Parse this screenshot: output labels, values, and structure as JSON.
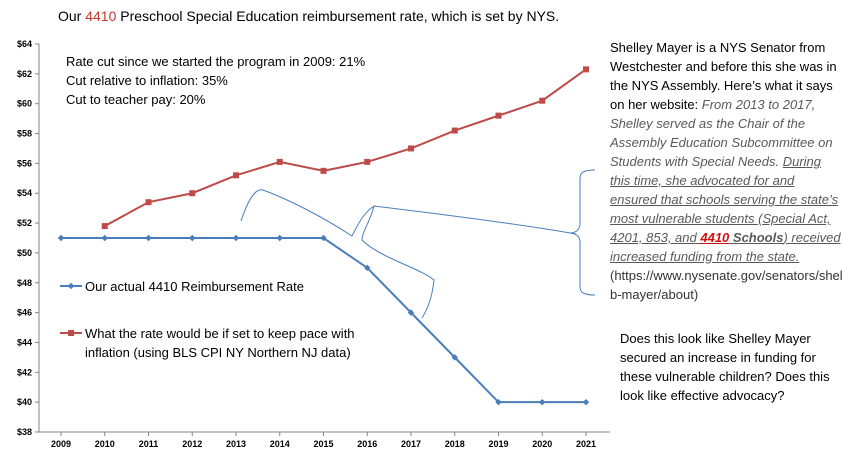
{
  "title": {
    "prefix": "Our ",
    "highlight": "4410",
    "suffix": " Preschool Special Education reimbursement rate, which is set by NYS."
  },
  "notes": [
    "Rate cut since we started the program in 2009: 21%",
    "Cut relative to inflation: 35%",
    "Cut to teacher pay: 20%"
  ],
  "sidebar": {
    "intro": "Shelley Mayer is a NYS Senator from Westchester and before this she was in the NYS Assembly. Here’s what it says on her website: ",
    "quote_1": "From 2013 to 2017, Shelley served as the Chair of the Assembly Education Subcommittee on Students with Special Needs. ",
    "quote_2": "During this time, she advocated for and ensured that schools  serving the state’s most vulnerable students (Special Act, 4201, 853, and ",
    "quote_red": "4410",
    "quote_3": " Schools",
    "quote_4": ") received increased funding from the state.",
    "url": " (https://www.nysenate.gov/senators/shelley-b-mayer/about)"
  },
  "question": "Does this look like Shelley Mayer secured an increase in funding for these vulnerable children? Does this look like effective advocacy?",
  "colors": {
    "actual": "#4a7ebb",
    "inflation": "#be4b48",
    "axis": "#868686",
    "annotation": "#4a7ebb"
  },
  "chart_data": {
    "type": "line",
    "x": [
      2009,
      2010,
      2011,
      2012,
      2013,
      2014,
      2015,
      2016,
      2017,
      2018,
      2019,
      2020,
      2021
    ],
    "ylim": [
      38,
      64
    ],
    "yticks": [
      "$38",
      "$40",
      "$42",
      "$44",
      "$46",
      "$48",
      "$50",
      "$52",
      "$54",
      "$56",
      "$58",
      "$60",
      "$62",
      "$64"
    ],
    "grid": false,
    "series": [
      {
        "name": "Our actual 4410 Reimbursement Rate",
        "marker": "diamond",
        "values": [
          51,
          51,
          51,
          51,
          51,
          51,
          51,
          49,
          46,
          43,
          40,
          40,
          40
        ]
      },
      {
        "name": "What the rate would be if set to keep pace with inflation (using BLS CPI NY Northern NJ data)",
        "marker": "square",
        "values": [
          null,
          51.8,
          53.4,
          54.0,
          55.2,
          56.1,
          55.5,
          56.1,
          57.0,
          58.2,
          59.2,
          60.2,
          62.3
        ]
      }
    ]
  }
}
